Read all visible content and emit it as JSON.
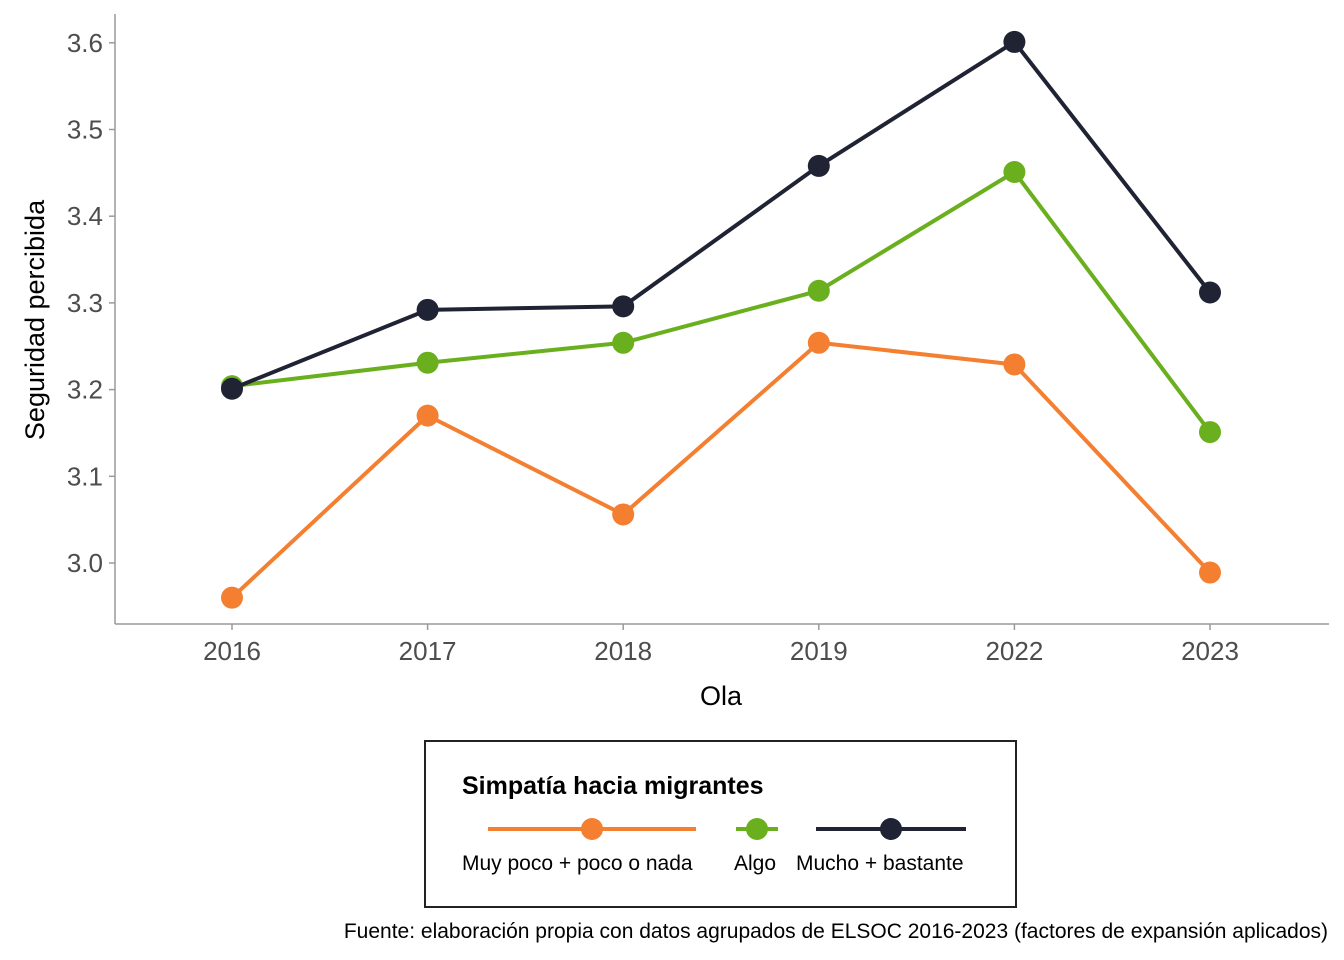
{
  "chart_data": {
    "type": "line",
    "title": "",
    "xlabel": "Ola",
    "ylabel": "Seguridad percibida",
    "categories": [
      "2016",
      "2017",
      "2018",
      "2019",
      "2022",
      "2023"
    ],
    "ylim": [
      2.94,
      3.63
    ],
    "yticks": [
      "3.0",
      "3.1",
      "3.2",
      "3.3",
      "3.4",
      "3.5",
      "3.6"
    ],
    "grid": false,
    "legend": {
      "title": "Simpatía hacia migrantes",
      "position": "bottom"
    },
    "series": [
      {
        "name": "Muy poco + poco o nada",
        "color": "#F47F31",
        "values": [
          2.96,
          3.17,
          3.056,
          3.254,
          3.229,
          2.989
        ]
      },
      {
        "name": "Algo",
        "color": "#6AAF1E",
        "values": [
          3.204,
          3.231,
          3.254,
          3.314,
          3.451,
          3.151
        ]
      },
      {
        "name": "Mucho + bastante",
        "color": "#1F2333",
        "values": [
          3.201,
          3.292,
          3.296,
          3.458,
          3.601,
          3.312
        ]
      }
    ],
    "caption": "Fuente: elaboración propia con datos agrupados de ELSOC 2016-2023 (factores de expansión aplicados)"
  }
}
